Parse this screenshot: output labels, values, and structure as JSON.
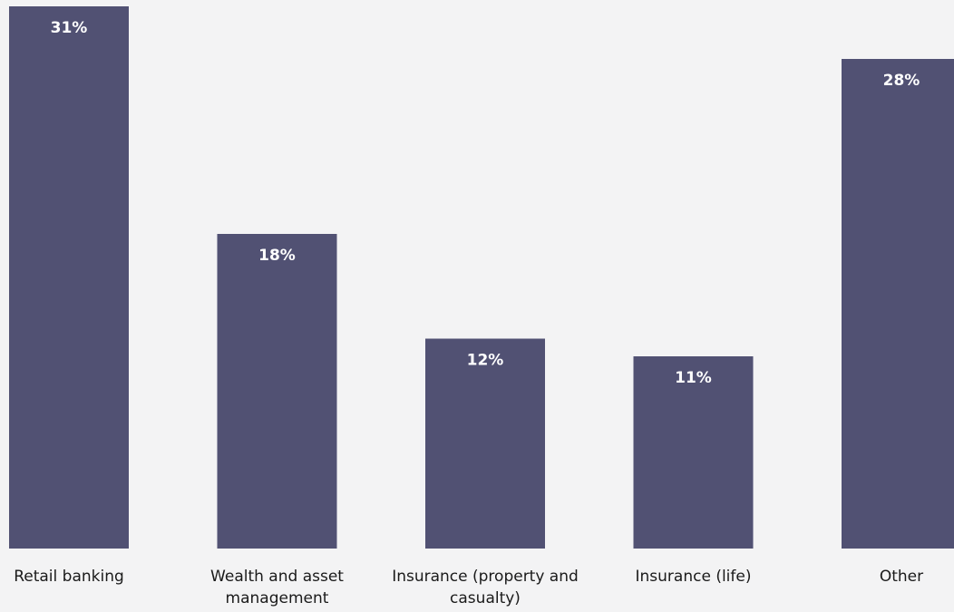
{
  "colors": {
    "background": "#f3f3f4",
    "bar": "#515173",
    "data_label": "#ffffff",
    "category_label": "#1a1a1a"
  },
  "chart_data": {
    "type": "bar",
    "title": "",
    "xlabel": "",
    "ylabel": "",
    "categories": [
      [
        "Retail banking"
      ],
      [
        "Wealth and asset",
        "management"
      ],
      [
        "Insurance (property and",
        "casualty)"
      ],
      [
        "Insurance (life)"
      ],
      [
        "Other"
      ]
    ],
    "values": [
      31,
      18,
      12,
      11,
      28
    ],
    "data_labels": [
      "31%",
      "18%",
      "12%",
      "11%",
      "28%"
    ],
    "value_unit": "%",
    "ylim": [
      0,
      31
    ],
    "grid": false,
    "legend": "none"
  }
}
